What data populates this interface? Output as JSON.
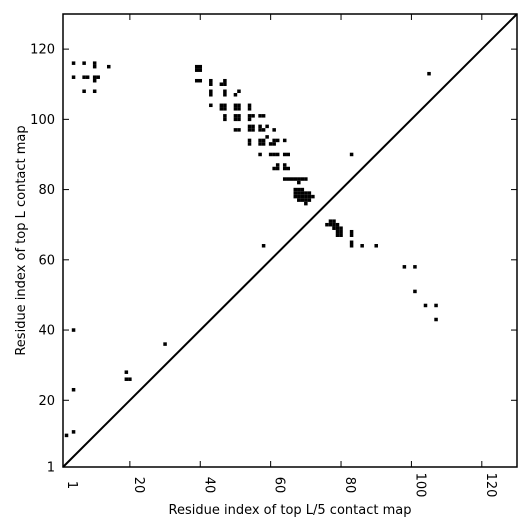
{
  "chart_data": {
    "type": "heatmap",
    "title": "",
    "xlabel": "Residue index of top L/5 contact map",
    "ylabel": "Residue index of top L contact map",
    "xlim": [
      1,
      130
    ],
    "ylim": [
      1,
      130
    ],
    "xticks": [
      1,
      20,
      40,
      60,
      80,
      100,
      120
    ],
    "yticks": [
      1,
      20,
      40,
      60,
      80,
      100,
      120
    ],
    "diagonal_line": true,
    "grid": false,
    "cell_color": "#000000",
    "upper_triangle_contacts": [
      [
        4,
        116
      ],
      [
        7,
        116
      ],
      [
        10,
        116
      ],
      [
        10,
        115
      ],
      [
        14,
        115
      ],
      [
        4,
        112
      ],
      [
        7,
        112
      ],
      [
        8,
        112
      ],
      [
        10,
        112
      ],
      [
        11,
        112
      ],
      [
        10,
        111
      ],
      [
        7,
        108
      ],
      [
        10,
        108
      ],
      [
        39,
        115
      ],
      [
        40,
        115
      ],
      [
        39,
        114
      ],
      [
        40,
        114
      ],
      [
        39,
        111
      ],
      [
        40,
        111
      ],
      [
        43,
        111
      ],
      [
        47,
        111
      ],
      [
        43,
        110
      ],
      [
        46,
        110
      ],
      [
        47,
        110
      ],
      [
        43,
        108
      ],
      [
        47,
        108
      ],
      [
        51,
        108
      ],
      [
        43,
        107
      ],
      [
        47,
        107
      ],
      [
        50,
        107
      ],
      [
        43,
        104
      ],
      [
        46,
        104
      ],
      [
        47,
        104
      ],
      [
        50,
        104
      ],
      [
        51,
        104
      ],
      [
        54,
        104
      ],
      [
        46,
        103
      ],
      [
        47,
        103
      ],
      [
        50,
        103
      ],
      [
        51,
        103
      ],
      [
        54,
        103
      ],
      [
        47,
        101
      ],
      [
        50,
        101
      ],
      [
        51,
        101
      ],
      [
        54,
        101
      ],
      [
        55,
        101
      ],
      [
        57,
        101
      ],
      [
        58,
        101
      ],
      [
        47,
        100
      ],
      [
        50,
        100
      ],
      [
        51,
        100
      ],
      [
        54,
        100
      ],
      [
        54,
        98
      ],
      [
        55,
        98
      ],
      [
        57,
        98
      ],
      [
        59,
        98
      ],
      [
        50,
        97
      ],
      [
        51,
        97
      ],
      [
        54,
        97
      ],
      [
        55,
        97
      ],
      [
        57,
        97
      ],
      [
        58,
        97
      ],
      [
        61,
        97
      ],
      [
        59,
        95
      ],
      [
        54,
        94
      ],
      [
        57,
        94
      ],
      [
        58,
        94
      ],
      [
        61,
        94
      ],
      [
        62,
        94
      ],
      [
        64,
        94
      ],
      [
        54,
        93
      ],
      [
        57,
        93
      ],
      [
        58,
        93
      ],
      [
        60,
        93
      ],
      [
        61,
        93
      ],
      [
        57,
        90
      ],
      [
        60,
        90
      ],
      [
        61,
        90
      ],
      [
        62,
        90
      ],
      [
        64,
        90
      ],
      [
        65,
        90
      ],
      [
        83,
        90
      ],
      [
        62,
        87
      ],
      [
        64,
        87
      ],
      [
        61,
        86
      ],
      [
        62,
        86
      ],
      [
        64,
        86
      ],
      [
        65,
        86
      ],
      [
        64,
        83
      ],
      [
        65,
        83
      ],
      [
        66,
        83
      ],
      [
        67,
        83
      ],
      [
        68,
        83
      ],
      [
        69,
        83
      ],
      [
        70,
        83
      ],
      [
        68,
        82
      ],
      [
        67,
        80
      ],
      [
        68,
        80
      ],
      [
        69,
        80
      ],
      [
        67,
        79
      ],
      [
        68,
        79
      ],
      [
        69,
        79
      ],
      [
        70,
        79
      ],
      [
        71,
        79
      ],
      [
        67,
        78
      ],
      [
        68,
        78
      ],
      [
        69,
        78
      ],
      [
        70,
        78
      ],
      [
        71,
        78
      ],
      [
        72,
        78
      ],
      [
        68,
        77
      ],
      [
        69,
        77
      ],
      [
        70,
        77
      ],
      [
        71,
        77
      ],
      [
        70,
        76
      ],
      [
        4,
        40
      ],
      [
        4,
        23
      ],
      [
        4,
        11
      ],
      [
        2,
        10
      ],
      [
        19,
        28
      ],
      [
        19,
        26
      ],
      [
        20,
        26
      ],
      [
        30,
        36
      ]
    ],
    "lower_triangle_contacts": [
      [
        58,
        64
      ],
      [
        76,
        70
      ],
      [
        77,
        70
      ],
      [
        78,
        70
      ],
      [
        79,
        70
      ],
      [
        77,
        71
      ],
      [
        78,
        71
      ],
      [
        78,
        69
      ],
      [
        79,
        69
      ],
      [
        80,
        69
      ],
      [
        79,
        68
      ],
      [
        80,
        68
      ],
      [
        79,
        67
      ],
      [
        80,
        67
      ],
      [
        83,
        68
      ],
      [
        83,
        67
      ],
      [
        83,
        65
      ],
      [
        83,
        64
      ],
      [
        86,
        64
      ],
      [
        90,
        64
      ],
      [
        98,
        58
      ],
      [
        101,
        58
      ],
      [
        101,
        51
      ],
      [
        104,
        47
      ],
      [
        107,
        47
      ],
      [
        107,
        43
      ],
      [
        105,
        113
      ]
    ]
  }
}
